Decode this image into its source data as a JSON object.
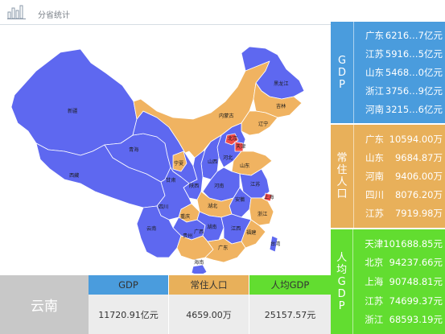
{
  "header": {
    "title": "分省统计"
  },
  "colors": {
    "blue": "#5e68f0",
    "orange": "#f0b361",
    "red": "#ef4b4b",
    "gdp": "#4a9cdd",
    "population": "#e8b05a",
    "per_capita_gdp": "#62dd30"
  },
  "map": {
    "labels": {
      "heilongjiang": "黑龙江",
      "jilin": "吉林",
      "liaoning": "辽宁",
      "neimenggu": "内蒙古",
      "beijing": "北京",
      "tianjin": "天津",
      "hebei": "河北",
      "shanxi": "山西",
      "shandong": "山东",
      "ningxia": "宁夏",
      "shaanxi": "陕西",
      "henan": "河南",
      "jiangsu": "江苏",
      "anhui": "安徽",
      "shanghai": "上海",
      "hubei": "湖北",
      "zhejiang": "浙江",
      "gansu": "甘肃",
      "qinghai": "青海",
      "xinjiang": "新疆",
      "xizang": "西藏",
      "sichuan": "四川",
      "chongqing": "重庆",
      "guizhou": "贵州",
      "hunan": "湖南",
      "jiangxi": "江西",
      "fujian": "福建",
      "yunnan": "云南",
      "guangxi": "广西",
      "guangdong": "广东",
      "hainan": "海南",
      "taiwan": "台湾"
    }
  },
  "gdp_panel": {
    "side_label": [
      "G",
      "D",
      "P"
    ],
    "rows": [
      {
        "name": "广东",
        "value": "6216…7亿元"
      },
      {
        "name": "江苏",
        "value": "5916…5亿元"
      },
      {
        "name": "山东",
        "value": "5468…0亿元"
      },
      {
        "name": "浙江",
        "value": "3756…9亿元"
      },
      {
        "name": "河南",
        "value": "3215…6亿元"
      }
    ]
  },
  "population_panel": {
    "side_label": [
      "常",
      "住",
      "人",
      "口"
    ],
    "rows": [
      {
        "name": "广东",
        "value": "10594.00万"
      },
      {
        "name": "山东",
        "value": "9684.87万"
      },
      {
        "name": "河南",
        "value": "9406.00万"
      },
      {
        "name": "四川",
        "value": "8076.20万"
      },
      {
        "name": "江苏",
        "value": "7919.98万"
      }
    ]
  },
  "per_capita_panel": {
    "side_label": [
      "人",
      "均",
      "G",
      "D",
      "P"
    ],
    "rows": [
      {
        "name": "天津",
        "value": "101688.85元"
      },
      {
        "name": "北京",
        "value": "94237.66元"
      },
      {
        "name": "上海",
        "value": "90748.81元"
      },
      {
        "name": "江苏",
        "value": "74699.37元"
      },
      {
        "name": "浙江",
        "value": "68593.19元"
      }
    ]
  },
  "detail": {
    "province": "云南",
    "gdp_label": "GDP",
    "gdp_value": "11720.91亿元",
    "population_label": "常住人口",
    "population_value": "4659.00万",
    "per_capita_label": "人均GDP",
    "per_capita_value": "25157.57元"
  }
}
